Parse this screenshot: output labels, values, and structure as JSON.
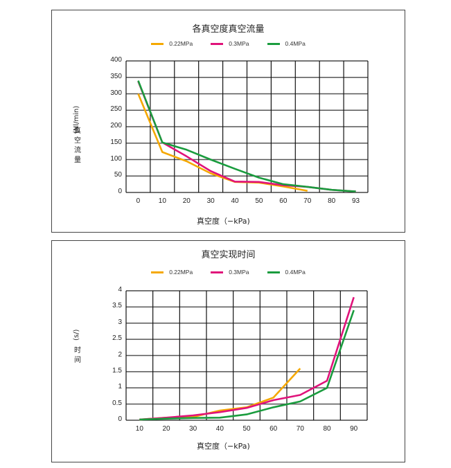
{
  "colors": {
    "s022": "#f5a800",
    "s03": "#e0127a",
    "s04": "#1a9c3e"
  },
  "chart1": {
    "title": "各真空度真空流量",
    "legend": [
      "0.22MPa",
      "0.3MPa",
      "0.4MPa"
    ],
    "ylabel_chars": [
      "真",
      "空",
      "流",
      "量"
    ],
    "ylabel_unit": "(Nl/min)",
    "xlabel": "真空度（−kPa)",
    "yticks": [
      "400",
      "350",
      "300",
      "250",
      "200",
      "150",
      "100",
      "50",
      "0"
    ],
    "xticks": [
      "0",
      "10",
      "20",
      "30",
      "40",
      "50",
      "60",
      "70",
      "80",
      "93"
    ]
  },
  "chart2": {
    "title": "真空实现时间",
    "legend": [
      "0.22MPa",
      "0.3MPa",
      "0.4MPa"
    ],
    "ylabel_chars": [
      "时",
      "间"
    ],
    "ylabel_unit": "(s/)",
    "xlabel": "真空度（−kPa)",
    "yticks": [
      "4",
      "3.5",
      "3",
      "2.5",
      "2",
      "1.5",
      "1",
      "0.5",
      "0"
    ],
    "xticks": [
      "10",
      "20",
      "30",
      "40",
      "50",
      "60",
      "70",
      "80",
      "90"
    ]
  },
  "chart_data": [
    {
      "type": "line",
      "title": "各真空度真空流量",
      "xlabel": "真空度（−kPa)",
      "ylabel": "真空流量 (Nl/min)",
      "categories": [
        "0",
        "10",
        "20",
        "30",
        "40",
        "50",
        "60",
        "70",
        "80",
        "93"
      ],
      "ylim": [
        0,
        400
      ],
      "grid": true,
      "legend_position": "top",
      "series": [
        {
          "name": "0.22MPa",
          "color": "#f5a800",
          "values": [
            300,
            123,
            95,
            58,
            32,
            30,
            18,
            5,
            null,
            null
          ]
        },
        {
          "name": "0.3MPa",
          "color": "#e0127a",
          "values": [
            338,
            152,
            110,
            65,
            33,
            32,
            22,
            17,
            8,
            3
          ]
        },
        {
          "name": "0.4MPa",
          "color": "#1a9c3e",
          "values": [
            340,
            152,
            130,
            100,
            72,
            45,
            25,
            17,
            8,
            3
          ]
        }
      ]
    },
    {
      "type": "line",
      "title": "真空实现时间",
      "xlabel": "真空度（−kPa)",
      "ylabel": "时间 (s/)",
      "categories": [
        "10",
        "20",
        "30",
        "40",
        "50",
        "60",
        "70",
        "80",
        "90"
      ],
      "ylim": [
        0,
        4
      ],
      "grid": true,
      "legend_position": "top",
      "series": [
        {
          "name": "0.22MPa",
          "color": "#f5a800",
          "values": [
            0.02,
            0.08,
            0.1,
            0.3,
            0.4,
            0.7,
            1.6,
            null,
            null
          ]
        },
        {
          "name": "0.3MPa",
          "color": "#e0127a",
          "values": [
            0.02,
            0.08,
            0.15,
            0.25,
            0.38,
            0.62,
            0.78,
            1.22,
            3.8
          ]
        },
        {
          "name": "0.4MPa",
          "color": "#1a9c3e",
          "values": [
            0.02,
            0.05,
            0.07,
            0.08,
            0.18,
            0.4,
            0.58,
            1.0,
            3.4
          ]
        }
      ]
    }
  ]
}
